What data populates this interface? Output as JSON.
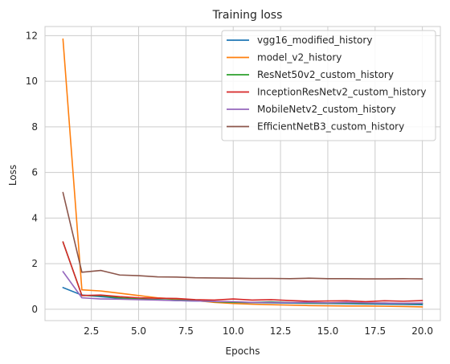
{
  "chart_data": {
    "type": "line",
    "title": "Training loss",
    "xlabel": "Epochs",
    "ylabel": "Loss",
    "xlim": [
      0.05,
      20.95
    ],
    "ylim": [
      -0.5,
      12.4
    ],
    "xticks": [
      2.5,
      5.0,
      7.5,
      10.0,
      12.5,
      15.0,
      17.5,
      20.0
    ],
    "xtick_labels": [
      "2.5",
      "5.0",
      "7.5",
      "10.0",
      "12.5",
      "15.0",
      "17.5",
      "20.0"
    ],
    "yticks": [
      0,
      2,
      4,
      6,
      8,
      10,
      12
    ],
    "ytick_labels": [
      "0",
      "2",
      "4",
      "6",
      "8",
      "10",
      "12"
    ],
    "grid": true,
    "legend_position": "top-right",
    "x": [
      1,
      2,
      3,
      4,
      5,
      6,
      7,
      8,
      9,
      10,
      11,
      12,
      13,
      14,
      15,
      16,
      17,
      18,
      19,
      20
    ],
    "series": [
      {
        "name": "vgg16_modified_history",
        "color": "#1f77b4",
        "values": [
          0.95,
          0.62,
          0.55,
          0.48,
          0.44,
          0.42,
          0.38,
          0.36,
          0.34,
          0.3,
          0.29,
          0.28,
          0.27,
          0.26,
          0.25,
          0.24,
          0.23,
          0.22,
          0.21,
          0.2
        ]
      },
      {
        "name": "model_v2_history",
        "color": "#ff7f0e",
        "values": [
          11.85,
          0.85,
          0.8,
          0.7,
          0.6,
          0.5,
          0.45,
          0.38,
          0.3,
          0.25,
          0.22,
          0.2,
          0.18,
          0.16,
          0.15,
          0.14,
          0.14,
          0.13,
          0.12,
          0.1
        ]
      },
      {
        "name": "ResNet50v2_custom_history",
        "color": "#2ca02c",
        "values": [
          2.95,
          0.6,
          0.6,
          0.5,
          0.45,
          0.42,
          0.4,
          0.38,
          0.33,
          0.3,
          0.3,
          0.32,
          0.29,
          0.28,
          0.27,
          0.28,
          0.26,
          0.27,
          0.25,
          0.25
        ]
      },
      {
        "name": "InceptionResNetv2_custom_history",
        "color": "#d62728",
        "values": [
          2.95,
          0.6,
          0.62,
          0.55,
          0.5,
          0.48,
          0.47,
          0.42,
          0.4,
          0.45,
          0.4,
          0.42,
          0.38,
          0.35,
          0.36,
          0.37,
          0.33,
          0.37,
          0.35,
          0.38
        ]
      },
      {
        "name": "MobileNetv2_custom_history",
        "color": "#9467bd",
        "values": [
          1.65,
          0.5,
          0.45,
          0.44,
          0.42,
          0.4,
          0.38,
          0.36,
          0.34,
          0.33,
          0.3,
          0.3,
          0.29,
          0.3,
          0.28,
          0.3,
          0.28,
          0.27,
          0.26,
          0.27
        ]
      },
      {
        "name": "EfficientNetB3_custom_history",
        "color": "#8c564b",
        "values": [
          5.12,
          1.62,
          1.7,
          1.5,
          1.47,
          1.42,
          1.41,
          1.38,
          1.37,
          1.36,
          1.35,
          1.35,
          1.34,
          1.36,
          1.34,
          1.34,
          1.33,
          1.33,
          1.34,
          1.33
        ]
      }
    ]
  }
}
